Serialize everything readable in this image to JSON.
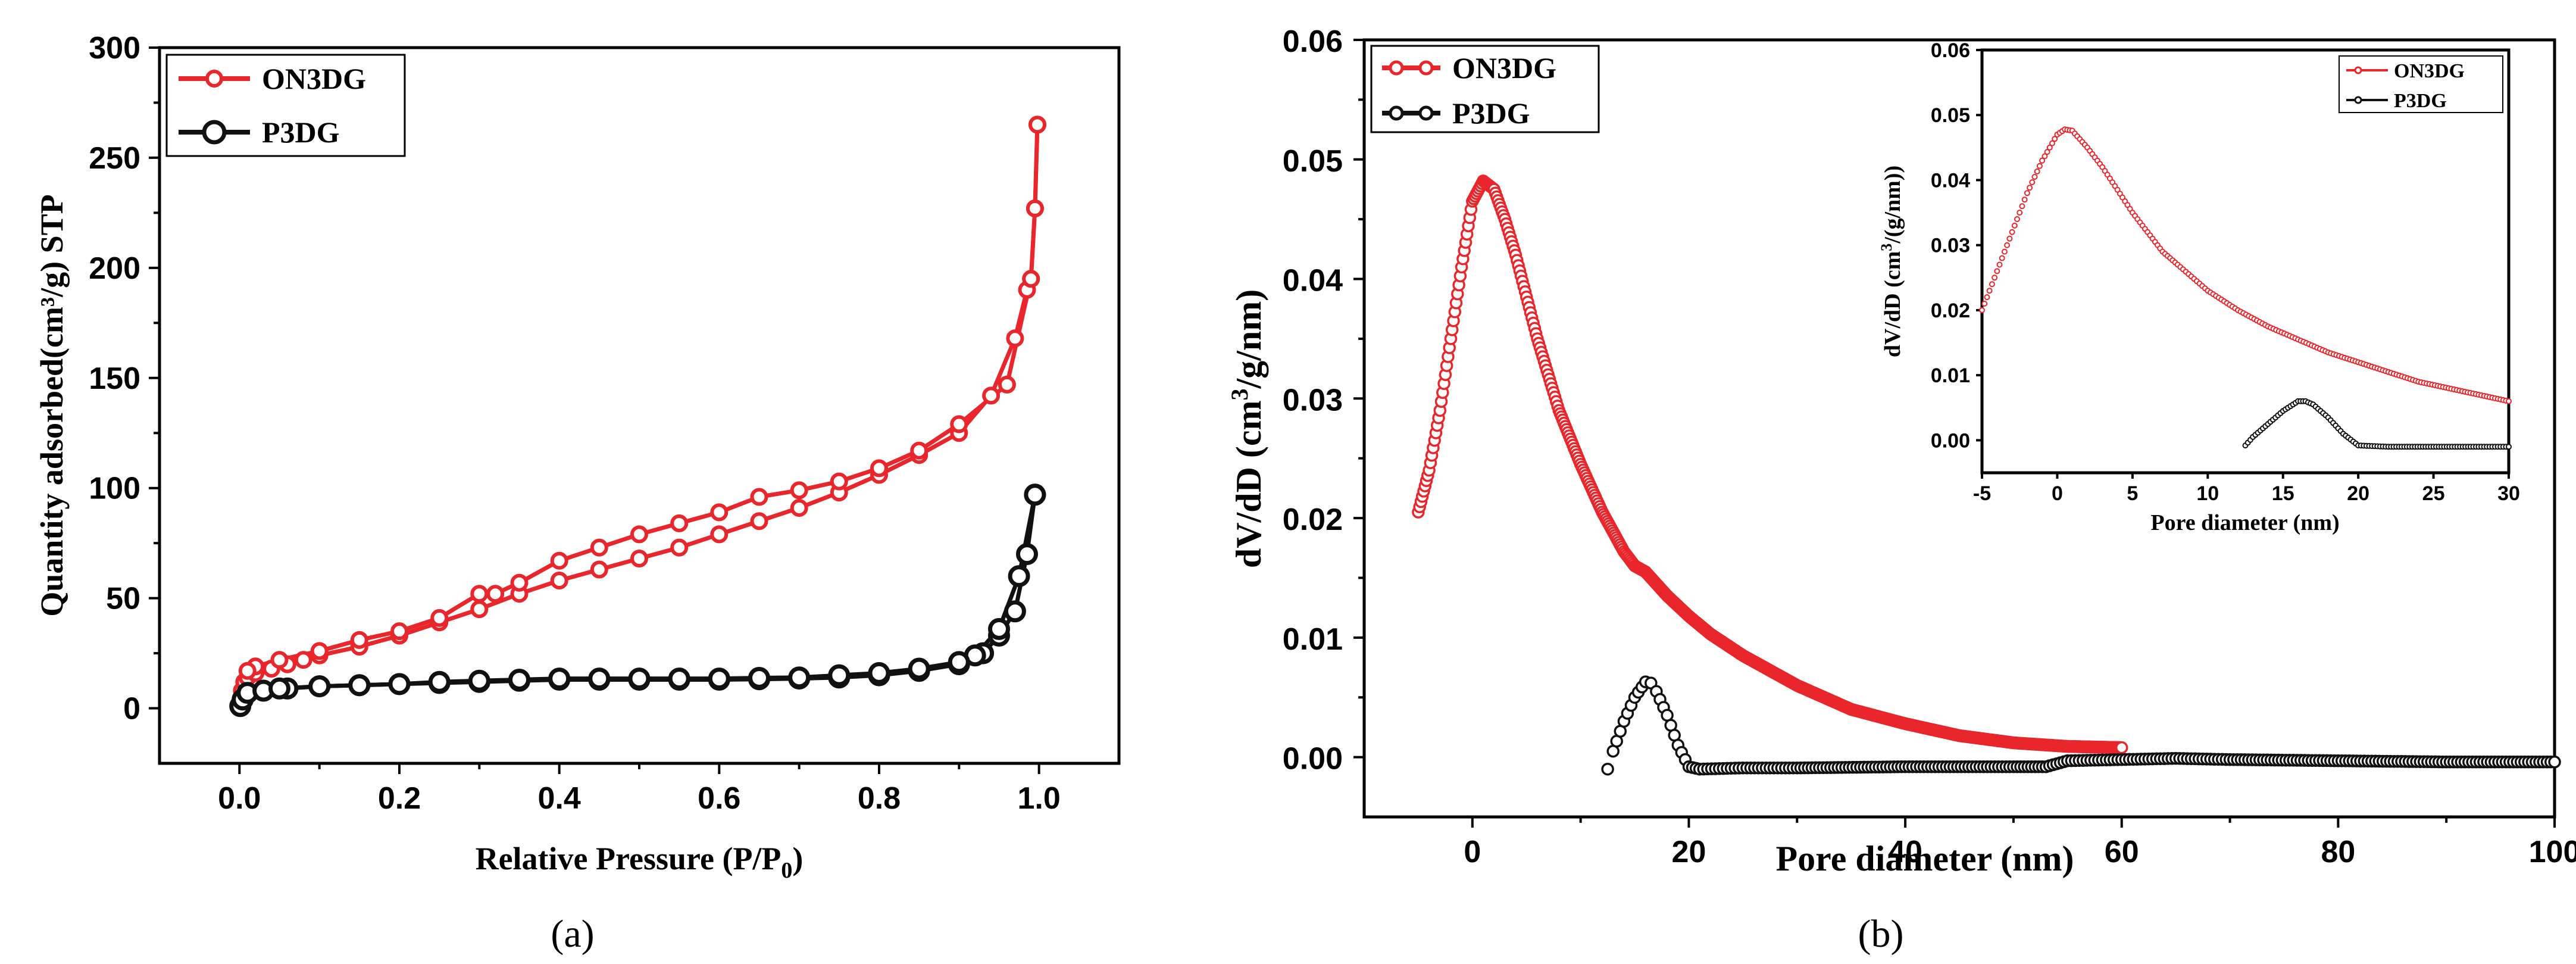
{
  "colors": {
    "on3dg": "#e8262b",
    "p3dg": "#111111"
  },
  "chart_data": [
    {
      "id": "a",
      "type": "line",
      "panel_label": "(a)",
      "xlabel_main": "Relative Pressure (P/P",
      "xlabel_sub": "0",
      "xlabel_close": ")",
      "ylabel": "Quantity adsorbed(cm³/g) STP",
      "xlim": [
        -0.1,
        1.1
      ],
      "ylim": [
        -25,
        300
      ],
      "xticks": [
        0.0,
        0.2,
        0.4,
        0.6,
        0.8,
        1.0
      ],
      "xtick_labels": [
        "0.0",
        "0.2",
        "0.4",
        "0.6",
        "0.8",
        "1.0"
      ],
      "yticks": [
        0,
        50,
        100,
        150,
        200,
        250,
        300
      ],
      "ytick_labels": [
        "0",
        "50",
        "100",
        "150",
        "200",
        "250",
        "300"
      ],
      "legend": {
        "position": "top-left",
        "entries": [
          "ON3DG",
          "P3DG"
        ]
      },
      "series": [
        {
          "name": "ON3DG",
          "color_key": "on3dg",
          "adsorption": [
            [
              0.001,
              3
            ],
            [
              0.003,
              8
            ],
            [
              0.006,
              12
            ],
            [
              0.01,
              14
            ],
            [
              0.02,
              16
            ],
            [
              0.04,
              18
            ],
            [
              0.06,
              20
            ],
            [
              0.08,
              22
            ],
            [
              0.1,
              24
            ],
            [
              0.15,
              28
            ],
            [
              0.2,
              33
            ],
            [
              0.25,
              39
            ],
            [
              0.3,
              45
            ],
            [
              0.35,
              52
            ],
            [
              0.4,
              58
            ],
            [
              0.45,
              63
            ],
            [
              0.5,
              68
            ],
            [
              0.55,
              73
            ],
            [
              0.6,
              79
            ],
            [
              0.65,
              85
            ],
            [
              0.7,
              91
            ],
            [
              0.75,
              98
            ],
            [
              0.8,
              106
            ],
            [
              0.85,
              115
            ],
            [
              0.9,
              125
            ],
            [
              0.94,
              142
            ],
            [
              0.97,
              168
            ],
            [
              0.985,
              190
            ],
            [
              0.99,
              195
            ],
            [
              0.995,
              227
            ],
            [
              0.998,
              265
            ]
          ],
          "desorption": [
            [
              0.998,
              265
            ],
            [
              0.995,
              227
            ],
            [
              0.99,
              195
            ],
            [
              0.96,
              147
            ],
            [
              0.9,
              129
            ],
            [
              0.85,
              117
            ],
            [
              0.8,
              109
            ],
            [
              0.75,
              103
            ],
            [
              0.7,
              99
            ],
            [
              0.65,
              96
            ],
            [
              0.6,
              89
            ],
            [
              0.55,
              84
            ],
            [
              0.5,
              79
            ],
            [
              0.45,
              73
            ],
            [
              0.4,
              67
            ],
            [
              0.35,
              57
            ],
            [
              0.32,
              52
            ],
            [
              0.3,
              52
            ],
            [
              0.25,
              41
            ],
            [
              0.2,
              35
            ],
            [
              0.15,
              31
            ],
            [
              0.1,
              26
            ],
            [
              0.05,
              22
            ],
            [
              0.02,
              19
            ],
            [
              0.01,
              17
            ]
          ]
        },
        {
          "name": "P3DG",
          "color_key": "p3dg",
          "adsorption": [
            [
              0.001,
              1
            ],
            [
              0.004,
              4
            ],
            [
              0.01,
              7
            ],
            [
              0.03,
              8
            ],
            [
              0.06,
              9
            ],
            [
              0.1,
              10
            ],
            [
              0.15,
              10.5
            ],
            [
              0.2,
              11
            ],
            [
              0.25,
              11.5
            ],
            [
              0.3,
              12
            ],
            [
              0.35,
              12.5
            ],
            [
              0.4,
              13
            ],
            [
              0.45,
              13
            ],
            [
              0.5,
              13
            ],
            [
              0.55,
              13
            ],
            [
              0.6,
              13
            ],
            [
              0.65,
              13.2
            ],
            [
              0.7,
              13.5
            ],
            [
              0.75,
              14
            ],
            [
              0.8,
              15
            ],
            [
              0.85,
              17
            ],
            [
              0.9,
              20
            ],
            [
              0.93,
              25
            ],
            [
              0.95,
              33
            ],
            [
              0.97,
              44
            ],
            [
              0.985,
              70
            ],
            [
              0.995,
              97
            ]
          ],
          "desorption": [
            [
              0.995,
              97
            ],
            [
              0.975,
              60
            ],
            [
              0.95,
              36
            ],
            [
              0.92,
              24
            ],
            [
              0.9,
              21
            ],
            [
              0.85,
              18
            ],
            [
              0.8,
              16
            ],
            [
              0.75,
              15
            ],
            [
              0.7,
              14
            ],
            [
              0.65,
              13.8
            ],
            [
              0.6,
              13.5
            ],
            [
              0.55,
              13.5
            ],
            [
              0.5,
              13.5
            ],
            [
              0.45,
              13.5
            ],
            [
              0.4,
              13.5
            ],
            [
              0.35,
              13
            ],
            [
              0.3,
              12.5
            ],
            [
              0.25,
              12
            ],
            [
              0.2,
              11
            ],
            [
              0.15,
              10.5
            ],
            [
              0.1,
              10
            ],
            [
              0.05,
              9
            ]
          ]
        }
      ]
    },
    {
      "id": "b",
      "type": "scatter",
      "panel_label": "(b)",
      "xlabel": "Pore diameter (nm)",
      "ylabel_pre": "dV/dD (cm",
      "ylabel_sup": "3",
      "ylabel_post": "/g/nm)",
      "xlim": [
        -10,
        100
      ],
      "ylim": [
        -0.005,
        0.06
      ],
      "xticks": [
        0,
        20,
        40,
        60,
        80,
        100
      ],
      "xtick_labels": [
        "0",
        "20",
        "40",
        "60",
        "80",
        "100"
      ],
      "yticks": [
        0.0,
        0.01,
        0.02,
        0.03,
        0.04,
        0.05,
        0.06
      ],
      "ytick_labels": [
        "0.00",
        "0.01",
        "0.02",
        "0.03",
        "0.04",
        "0.05",
        "0.06"
      ],
      "legend": {
        "position": "top-left",
        "entries": [
          "ON3DG",
          "P3DG"
        ]
      },
      "series": [
        {
          "name": "ON3DG",
          "color_key": "on3dg",
          "x": [
            -5,
            -4,
            -3,
            -2,
            -1,
            0,
            1,
            2,
            3,
            4,
            5,
            6,
            7,
            8,
            10,
            12,
            14,
            15,
            16,
            18,
            20,
            22,
            25,
            28,
            30,
            35,
            40,
            45,
            50,
            55,
            60
          ],
          "y": [
            0.0205,
            0.024,
            0.029,
            0.035,
            0.041,
            0.0465,
            0.0482,
            0.0475,
            0.045,
            0.042,
            0.0385,
            0.035,
            0.032,
            0.029,
            0.0245,
            0.0205,
            0.0172,
            0.016,
            0.0155,
            0.0135,
            0.0118,
            0.0103,
            0.0085,
            0.007,
            0.006,
            0.004,
            0.0028,
            0.0018,
            0.0012,
            0.0009,
            0.0008
          ]
        },
        {
          "name": "P3DG",
          "color_key": "p3dg",
          "x": [
            12.5,
            13,
            14,
            15,
            16,
            16.5,
            17,
            18,
            19,
            20,
            21,
            25,
            30,
            40,
            50,
            53,
            55,
            60,
            65,
            70,
            80,
            90,
            100
          ],
          "y": [
            -0.001,
            0.0005,
            0.003,
            0.005,
            0.0063,
            0.0062,
            0.0055,
            0.0035,
            0.001,
            -0.0008,
            -0.001,
            -0.0009,
            -0.0009,
            -0.0008,
            -0.0008,
            -0.0008,
            -0.0003,
            -0.0002,
            -0.0001,
            -0.0002,
            -0.0003,
            -0.0004,
            -0.0004
          ]
        }
      ]
    },
    {
      "id": "b-inset",
      "type": "scatter",
      "xlabel": "Pore diameter (nm)",
      "ylabel_pre": "dV/dD (cm",
      "ylabel_sup": "3",
      "ylabel_post": "/(g/nm))",
      "xlim": [
        -5,
        30
      ],
      "ylim": [
        -0.005,
        0.06
      ],
      "xticks": [
        -5,
        0,
        5,
        10,
        15,
        20,
        25,
        30
      ],
      "xtick_labels": [
        "-5",
        "0",
        "5",
        "10",
        "15",
        "20",
        "25",
        "30"
      ],
      "yticks": [
        0.0,
        0.01,
        0.02,
        0.03,
        0.04,
        0.05,
        0.06
      ],
      "ytick_labels": [
        "0.00",
        "0.01",
        "0.02",
        "0.03",
        "0.04",
        "0.05",
        "0.06"
      ],
      "legend": {
        "position": "top-right",
        "entries": [
          "ON3DG",
          "P3DG"
        ]
      },
      "series": [
        {
          "name": "ON3DG",
          "color_key": "on3dg",
          "x": [
            -5,
            -4,
            -3,
            -2,
            -1,
            0,
            0.5,
            1,
            2,
            3,
            4,
            5,
            6,
            7,
            8,
            10,
            12,
            14,
            16,
            18,
            20,
            22,
            24,
            26,
            28,
            30
          ],
          "y": [
            0.02,
            0.026,
            0.032,
            0.038,
            0.043,
            0.047,
            0.0478,
            0.0476,
            0.045,
            0.042,
            0.0385,
            0.035,
            0.032,
            0.029,
            0.027,
            0.023,
            0.02,
            0.0175,
            0.0155,
            0.0135,
            0.012,
            0.0105,
            0.009,
            0.008,
            0.007,
            0.006
          ]
        },
        {
          "name": "P3DG",
          "color_key": "p3dg",
          "x": [
            12.5,
            13,
            14,
            15,
            16,
            16.5,
            17,
            18,
            19,
            20,
            22,
            25,
            28,
            30
          ],
          "y": [
            -0.0008,
            0.0005,
            0.0025,
            0.0045,
            0.006,
            0.006,
            0.0055,
            0.0035,
            0.001,
            -0.0008,
            -0.001,
            -0.001,
            -0.001,
            -0.001
          ]
        }
      ]
    }
  ]
}
